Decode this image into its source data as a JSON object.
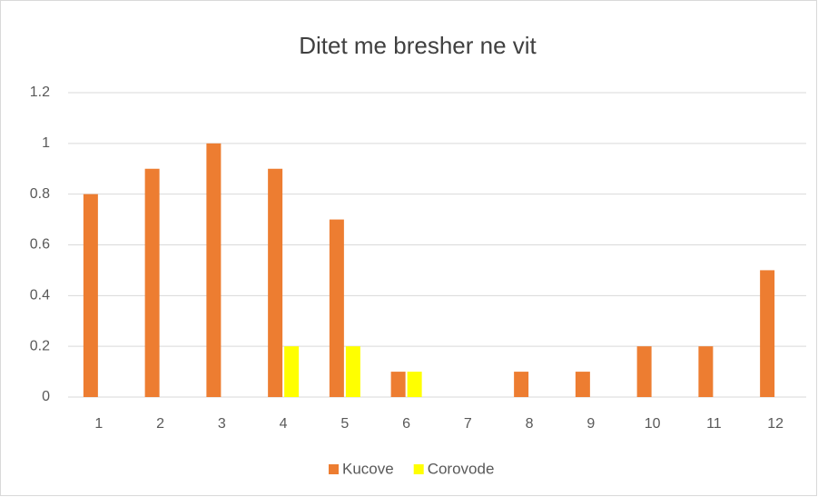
{
  "chart_data": {
    "type": "bar",
    "title": "Ditet me bresher ne vit",
    "categories": [
      "1",
      "2",
      "3",
      "4",
      "5",
      "6",
      "7",
      "8",
      "9",
      "10",
      "11",
      "12"
    ],
    "series": [
      {
        "name": "Kucove",
        "color": "#ed7d31",
        "values": [
          0.8,
          0.9,
          1,
          0.9,
          0.7,
          0.1,
          0,
          0.1,
          0.1,
          0.2,
          0.2,
          0.5
        ]
      },
      {
        "name": "Corovode",
        "color": "#ffff00",
        "values": [
          0,
          0,
          0,
          0.2,
          0.2,
          0.1,
          0,
          0,
          0,
          0,
          0,
          0
        ]
      }
    ],
    "ylim": [
      0,
      1.2
    ],
    "yticks": [
      0,
      0.2,
      0.4,
      0.6,
      0.8,
      1,
      1.2
    ],
    "grid": true,
    "legend": "bottom"
  }
}
